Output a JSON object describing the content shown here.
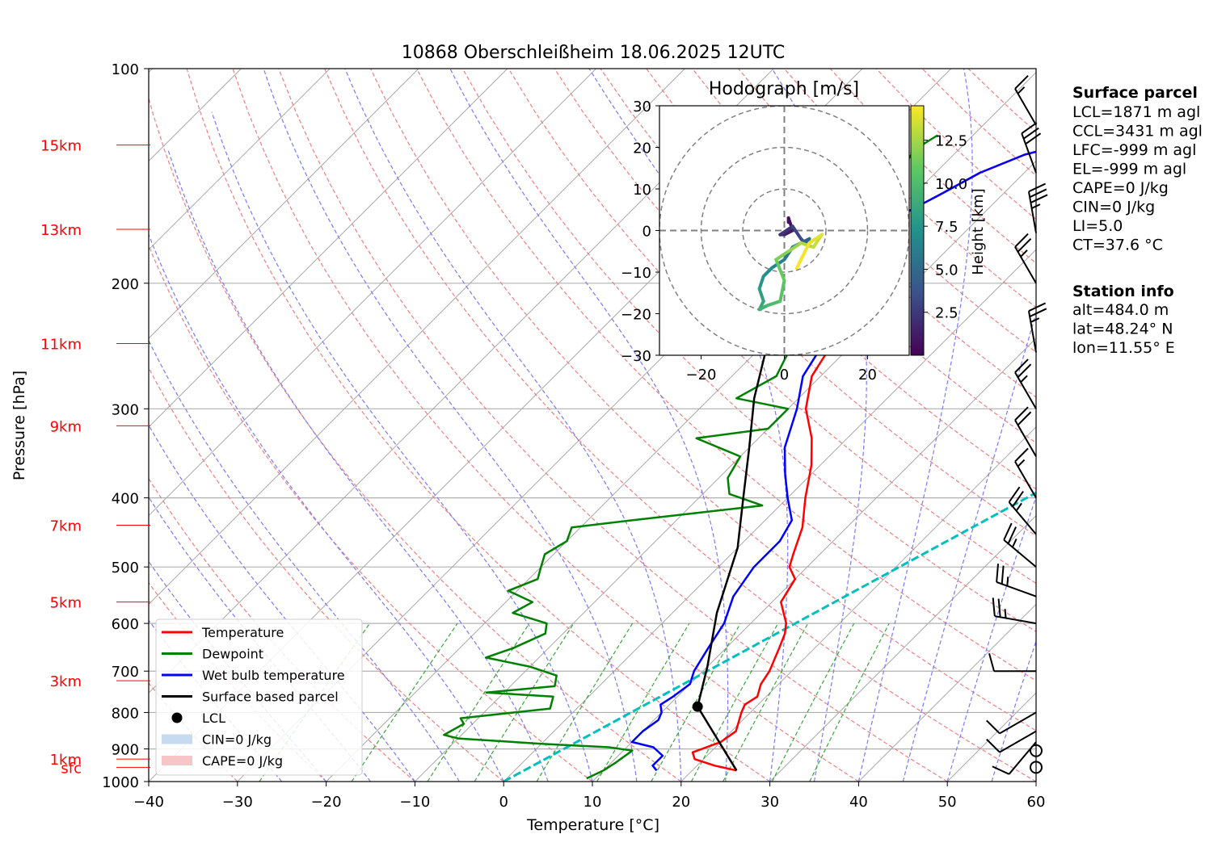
{
  "title": "10868 Oberschleißheim 18.06.2025 12UTC",
  "chart_data": {
    "type": "line",
    "xlabel": "Temperature [°C]",
    "ylabel": "Pressure [hPa]",
    "xlim": [
      -40,
      60
    ],
    "ylim": [
      1000,
      100
    ],
    "y_scale": "log",
    "grid": true,
    "x_ticks": [
      "−40",
      "−30",
      "−20",
      "−10",
      "0",
      "10",
      "20",
      "30",
      "40",
      "50",
      "60"
    ],
    "p_ticks": [
      {
        "p": 1000,
        "label": "1000"
      },
      {
        "p": 900,
        "label": "900"
      },
      {
        "p": 800,
        "label": "800"
      },
      {
        "p": 700,
        "label": "700"
      },
      {
        "p": 600,
        "label": "600"
      },
      {
        "p": 500,
        "label": "500"
      },
      {
        "p": 400,
        "label": "400"
      },
      {
        "p": 300,
        "label": "300"
      },
      {
        "p": 200,
        "label": "200"
      },
      {
        "p": 100,
        "label": "100"
      }
    ],
    "height_labels": [
      {
        "label": "sfc",
        "p": 955
      },
      {
        "label": "1km",
        "p": 930
      },
      {
        "label": "3km",
        "p": 722
      },
      {
        "label": "5km",
        "p": 560
      },
      {
        "label": "7km",
        "p": 437
      },
      {
        "label": "9km",
        "p": 317
      },
      {
        "label": "11km",
        "p": 243
      },
      {
        "label": "13km",
        "p": 168
      },
      {
        "label": "15km",
        "p": 128
      }
    ],
    "series": [
      {
        "name": "Temperature",
        "color": "#ff0000",
        "points": [
          [
            25,
            965
          ],
          [
            22,
            950
          ],
          [
            19,
            930
          ],
          [
            18,
            910
          ],
          [
            20,
            880
          ],
          [
            20.5,
            850
          ],
          [
            19,
            800
          ],
          [
            18.5,
            780
          ],
          [
            19,
            760
          ],
          [
            18,
            730
          ],
          [
            17.5,
            700
          ],
          [
            16,
            650
          ],
          [
            15,
            620
          ],
          [
            14,
            600
          ],
          [
            11,
            560
          ],
          [
            10,
            520
          ],
          [
            8,
            500
          ],
          [
            7,
            480
          ],
          [
            5,
            440
          ],
          [
            2,
            400
          ],
          [
            -1,
            360
          ],
          [
            -4,
            330
          ],
          [
            -8,
            300
          ],
          [
            -11,
            270
          ],
          [
            -12,
            250
          ],
          [
            -14,
            230
          ],
          [
            -16,
            215
          ],
          [
            -18,
            200
          ],
          [
            -19,
            185
          ],
          [
            -20,
            170
          ],
          [
            -19,
            160
          ],
          [
            -17,
            150
          ],
          [
            -15,
            140
          ],
          [
            -12,
            132
          ],
          [
            -8,
            127
          ]
        ]
      },
      {
        "name": "Dewpoint",
        "color": "#008000",
        "points": [
          [
            9,
            990
          ],
          [
            10,
            965
          ],
          [
            10.5,
            940
          ],
          [
            11,
            905
          ],
          [
            8,
            895
          ],
          [
            0,
            885
          ],
          [
            -10,
            870
          ],
          [
            -12,
            860
          ],
          [
            -11,
            830
          ],
          [
            -12,
            815
          ],
          [
            -3,
            790
          ],
          [
            -4,
            760
          ],
          [
            -12,
            750
          ],
          [
            -5,
            735
          ],
          [
            -6,
            710
          ],
          [
            -10,
            690
          ],
          [
            -16,
            670
          ],
          [
            -14,
            650
          ],
          [
            -12,
            620
          ],
          [
            -13,
            600
          ],
          [
            -18,
            580
          ],
          [
            -17,
            560
          ],
          [
            -21,
            540
          ],
          [
            -19,
            520
          ],
          [
            -20,
            500
          ],
          [
            -21,
            480
          ],
          [
            -20,
            460
          ],
          [
            -21,
            440
          ],
          [
            -15,
            430
          ],
          [
            -2,
            410
          ],
          [
            -7,
            395
          ],
          [
            -9,
            375
          ],
          [
            -10,
            350
          ],
          [
            -17,
            330
          ],
          [
            -10,
            320
          ],
          [
            -10,
            300
          ],
          [
            -17,
            290
          ],
          [
            -15,
            270
          ],
          [
            -16,
            255
          ],
          [
            -17,
            240
          ],
          [
            -18,
            225
          ],
          [
            -18,
            210
          ],
          [
            -18,
            195
          ],
          [
            -17,
            180
          ],
          [
            -17,
            170
          ],
          [
            -22,
            163
          ],
          [
            -24,
            150
          ],
          [
            -24,
            140
          ],
          [
            -25,
            130
          ],
          [
            -24,
            124
          ]
        ]
      },
      {
        "name": "Wet bulb temperature",
        "color": "#0000ff",
        "points": [
          [
            16,
            965
          ],
          [
            15,
            950
          ],
          [
            15,
            920
          ],
          [
            13,
            895
          ],
          [
            10,
            880
          ],
          [
            10,
            850
          ],
          [
            10.5,
            820
          ],
          [
            10,
            800
          ],
          [
            9,
            780
          ],
          [
            9.5,
            760
          ],
          [
            10,
            730
          ],
          [
            9,
            700
          ],
          [
            8,
            650
          ],
          [
            7,
            600
          ],
          [
            5,
            550
          ],
          [
            4,
            500
          ],
          [
            4,
            460
          ],
          [
            3,
            430
          ],
          [
            0,
            400
          ],
          [
            -3,
            370
          ],
          [
            -6,
            340
          ],
          [
            -9,
            300
          ],
          [
            -12,
            270
          ],
          [
            -13,
            250
          ],
          [
            -15,
            230
          ],
          [
            -16,
            215
          ],
          [
            -18,
            200
          ],
          [
            -19,
            185
          ],
          [
            -20,
            170
          ],
          [
            -19,
            160
          ],
          [
            -17,
            150
          ],
          [
            -15,
            140
          ],
          [
            -12,
            132
          ],
          [
            -8,
            127
          ]
        ]
      }
    ],
    "parcel": {
      "name": "Surface based parcel",
      "color": "#000000",
      "points": [
        [
          25,
          965
        ],
        [
          13.4,
          785
        ],
        [
          10,
          690
        ],
        [
          5,
          580
        ],
        [
          0,
          470
        ],
        [
          -5,
          400
        ],
        [
          -10,
          340
        ],
        [
          -15,
          290
        ],
        [
          -20,
          240
        ],
        [
          -25,
          195
        ],
        [
          -30,
          160
        ],
        [
          -33.5,
          130
        ]
      ]
    },
    "lcl": {
      "name": "LCL",
      "t": 13.4,
      "p": 785
    },
    "ccl_line": {
      "color": "#00bfbf",
      "t0": 0,
      "p0": 1000,
      "t1": 60,
      "p1": 130
    },
    "legend": {
      "placement": "lower-left",
      "items": [
        {
          "label": "Temperature",
          "kind": "line",
          "color": "#ff0000"
        },
        {
          "label": "Dewpoint",
          "kind": "line",
          "color": "#008000"
        },
        {
          "label": "Wet bulb temperature",
          "kind": "line",
          "color": "#0000ff"
        },
        {
          "label": "Surface based parcel",
          "kind": "line",
          "color": "#000000"
        },
        {
          "label": "LCL",
          "kind": "dot",
          "color": "#000000"
        },
        {
          "label": "CIN=0 J/kg",
          "kind": "patch",
          "color": "#c6dbef"
        },
        {
          "label": "CAPE=0 J/kg",
          "kind": "patch",
          "color": "#f7c5c5"
        }
      ]
    },
    "wind_barbs": [
      {
        "p": 955,
        "dir": 0,
        "spd": 0
      },
      {
        "p": 905,
        "dir": 0,
        "spd": 0
      },
      {
        "p": 880,
        "dir": 220,
        "spd": 10
      },
      {
        "p": 850,
        "dir": 240,
        "spd": 10
      },
      {
        "p": 800,
        "dir": 240,
        "spd": 10
      },
      {
        "p": 700,
        "dir": 270,
        "spd": 10
      },
      {
        "p": 600,
        "dir": 280,
        "spd": 25
      },
      {
        "p": 550,
        "dir": 290,
        "spd": 25
      },
      {
        "p": 500,
        "dir": 310,
        "spd": 25
      },
      {
        "p": 450,
        "dir": 320,
        "spd": 25
      },
      {
        "p": 400,
        "dir": 330,
        "spd": 15
      },
      {
        "p": 350,
        "dir": 330,
        "spd": 20
      },
      {
        "p": 300,
        "dir": 330,
        "spd": 25
      },
      {
        "p": 250,
        "dir": 350,
        "spd": 25
      },
      {
        "p": 200,
        "dir": 330,
        "spd": 25
      },
      {
        "p": 170,
        "dir": 350,
        "spd": 35
      },
      {
        "p": 140,
        "dir": 340,
        "spd": 30
      },
      {
        "p": 120,
        "dir": 330,
        "spd": 15
      }
    ],
    "hodograph": {
      "title": "Hodograph [m/s]",
      "xlim": [
        -30,
        30
      ],
      "ylim": [
        -30,
        30
      ],
      "x_ticks": [
        "−20",
        "0",
        "20"
      ],
      "y_ticks": [
        "30",
        "20",
        "10",
        "0",
        "−10",
        "−20",
        "−30"
      ],
      "rings": [
        10,
        20,
        30
      ],
      "colorbar": {
        "label": "Height [km]",
        "ticks": [
          "2.5",
          "5.0",
          "7.5",
          "10.0",
          "12.5"
        ],
        "range": [
          0,
          14.5
        ]
      },
      "points": [
        [
          1,
          2,
          0.3
        ],
        [
          1,
          3,
          0.8
        ],
        [
          2,
          0,
          1.2
        ],
        [
          0,
          -1,
          1.8
        ],
        [
          -1,
          -1,
          2.3
        ],
        [
          2,
          1,
          2.9
        ],
        [
          4,
          -2,
          3.5
        ],
        [
          5,
          -3,
          4.1
        ],
        [
          6,
          -2,
          4.7
        ],
        [
          4,
          -3,
          5.3
        ],
        [
          2,
          -4,
          5.8
        ],
        [
          0,
          -7,
          6.4
        ],
        [
          -3,
          -9,
          7.0
        ],
        [
          -5,
          -11,
          7.6
        ],
        [
          -6,
          -14,
          8.1
        ],
        [
          -5,
          -17,
          8.7
        ],
        [
          -6,
          -19,
          9.3
        ],
        [
          -4,
          -18,
          9.9
        ],
        [
          -1,
          -17,
          10.5
        ],
        [
          0,
          -12,
          11.0
        ],
        [
          -2,
          -7,
          11.6
        ],
        [
          1,
          -5,
          12.2
        ],
        [
          4,
          -3,
          12.8
        ],
        [
          7,
          -4,
          13.3
        ],
        [
          9,
          -1,
          13.9
        ],
        [
          6,
          -3,
          14.2
        ],
        [
          4,
          -7,
          14.4
        ],
        [
          3,
          -9,
          14.5
        ]
      ]
    }
  },
  "info": {
    "surface_heading": "Surface parcel",
    "surface_lines": [
      "LCL=1871 m agl",
      "CCL=3431 m agl",
      "LFC=-999 m agl",
      "EL=-999 m agl",
      "CAPE=0 J/kg",
      "CIN=0 J/kg",
      "LI=5.0",
      "CT=37.6 °C"
    ],
    "station_heading": "Station info",
    "station_lines": [
      "alt=484.0 m",
      "lat=48.24° N",
      "lon=11.55° E"
    ]
  }
}
